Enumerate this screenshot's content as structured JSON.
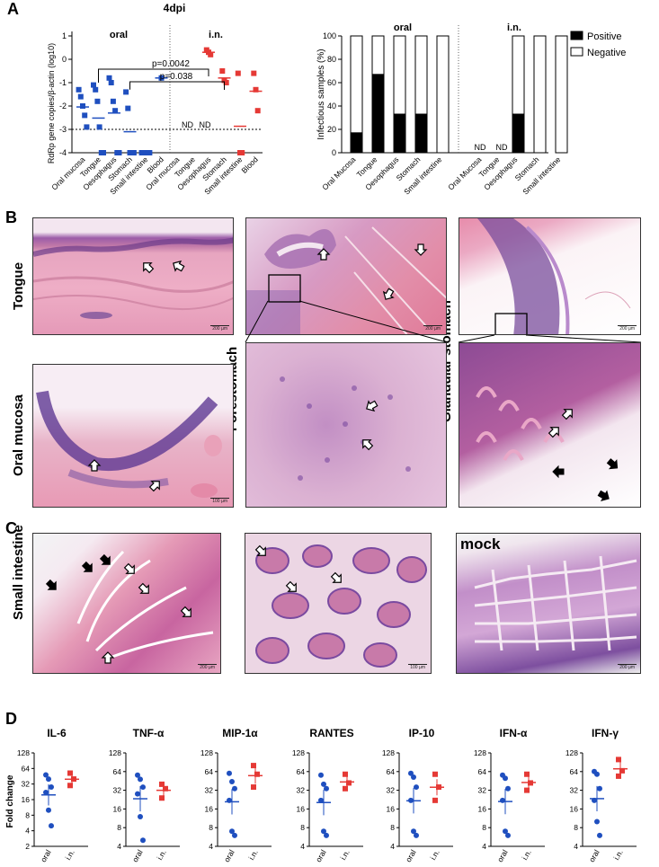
{
  "panelA": {
    "letter": "A",
    "time_label": "4dpi",
    "left": {
      "group_oral": "oral",
      "group_in": "i.n.",
      "ylabel": "RdRp gene copies/β-actin (log10)",
      "yticks": [
        "1",
        "0",
        "-1",
        "-2",
        "-3",
        "-4"
      ],
      "p1": "p=0.0042",
      "p2": "p=0.038",
      "nd": [
        "ND",
        "ND"
      ],
      "categories": [
        "Oral mucosa",
        "Tongue",
        "Oesophagus",
        "Stomach",
        "Small intestine",
        "Blood",
        "Oral mucosa",
        "Tongue",
        "Oesophagus",
        "Stomach",
        "Small intestine",
        "Blood"
      ],
      "colors": {
        "oral": "#1f4fbf",
        "in": "#e53935"
      }
    },
    "right": {
      "group_oral": "oral",
      "group_in": "i.n.",
      "ylabel": "Infectious samples (%)",
      "yticks": [
        "0",
        "20",
        "40",
        "60",
        "80",
        "100"
      ],
      "legend": [
        "Positive",
        "Negative"
      ],
      "nd": [
        "ND",
        "ND"
      ],
      "categories": [
        "Oral Mucosa",
        "Tongue",
        "Oesophagus",
        "Stomach",
        "Small intestine",
        "Oral Mucosa",
        "Tongue",
        "Oesophagus",
        "Stomach",
        "Small intestine"
      ]
    }
  },
  "panelB": {
    "letter": "B",
    "labels": {
      "tongue": "Tongue",
      "oral_mucosa": "Oral mucosa",
      "forestomach": "Forestomach",
      "glandular": "Glandular stomach"
    },
    "scale_200": "200 µm",
    "scale_100": "100 µm"
  },
  "panelC": {
    "letter": "C",
    "label": "Small intestine",
    "mock": "mock",
    "scale_200": "200 µm",
    "scale_100": "100 µm"
  },
  "panelD": {
    "letter": "D",
    "ylabel": "Fold change",
    "xticks": [
      "oral",
      "i.n."
    ],
    "titles": [
      "IL-6",
      "TNF-α",
      "MIP-1α",
      "RANTES",
      "IP-10",
      "IFN-α",
      "IFN-γ"
    ],
    "ticks_first": [
      "2",
      "4",
      "8",
      "16",
      "32",
      "64",
      "128"
    ],
    "ticks_other": [
      "4",
      "8",
      "16",
      "32",
      "64",
      "128"
    ]
  },
  "chart_data": [
    {
      "type": "scatter",
      "title": "4dpi",
      "ylabel": "RdRp gene copies/β-actin (log10)",
      "ylim": [
        -4,
        1
      ],
      "series": [
        {
          "name": "oral",
          "points": [
            {
              "x": "Oral mucosa",
              "y": [
                -1.3,
                -1.6,
                -2.0,
                -2.4,
                -2.9
              ]
            },
            {
              "x": "Tongue",
              "y": [
                -1.1,
                -1.3,
                -1.8,
                -2.9,
                -4,
                -4
              ]
            },
            {
              "x": "Oesophagus",
              "y": [
                -0.8,
                -1.0,
                -1.8,
                -2.2,
                -4,
                -4
              ]
            },
            {
              "x": "Stomach",
              "y": [
                -1.4,
                -2.1,
                -4,
                -4,
                -4
              ]
            },
            {
              "x": "Small intestine",
              "y": [
                -4,
                -4,
                -4,
                -4,
                -4
              ]
            },
            {
              "x": "Blood",
              "y": [
                -0.8
              ]
            }
          ]
        },
        {
          "name": "i.n.",
          "points": [
            {
              "x": "Oesophagus",
              "y": [
                0.4,
                0.3,
                0.2
              ]
            },
            {
              "x": "Stomach",
              "y": [
                -0.5,
                -0.9,
                -1.0
              ]
            },
            {
              "x": "Small intestine",
              "y": [
                -0.6,
                -4,
                -4
              ]
            },
            {
              "x": "Blood",
              "y": [
                -0.6,
                -1.3,
                -2.2
              ]
            }
          ]
        }
      ]
    },
    {
      "type": "bar",
      "stacked": true,
      "ylabel": "Infectious samples (%)",
      "ylim": [
        0,
        100
      ],
      "legend": [
        "Positive",
        "Negative"
      ],
      "groups": [
        {
          "name": "oral",
          "categories": [
            "Oral Mucosa",
            "Tongue",
            "Oesophagus",
            "Stomach",
            "Small intestine"
          ],
          "positive": [
            17,
            67,
            33,
            33,
            0
          ]
        },
        {
          "name": "i.n.",
          "categories": [
            "Oral Mucosa",
            "Tongue",
            "Oesophagus",
            "Stomach",
            "Small intestine"
          ],
          "positive": [
            null,
            null,
            33,
            0,
            0
          ]
        }
      ]
    },
    {
      "type": "scatter",
      "ylabel": "Fold change",
      "yscale": "log2",
      "panels": [
        {
          "title": "IL-6",
          "ylim": [
            2,
            128
          ],
          "oral": [
            48,
            40,
            28,
            22,
            10,
            5
          ],
          "in": [
            52,
            40,
            30
          ]
        },
        {
          "title": "TNF-α",
          "ylim": [
            4,
            128
          ],
          "oral": [
            56,
            48,
            36,
            28,
            12,
            5
          ],
          "in": [
            40,
            34,
            24
          ]
        },
        {
          "title": "MIP-1α",
          "ylim": [
            4,
            128
          ],
          "oral": [
            60,
            44,
            34,
            22,
            7,
            6
          ],
          "in": [
            80,
            58,
            36
          ]
        },
        {
          "title": "RANTES",
          "ylim": [
            4,
            128
          ],
          "oral": [
            56,
            40,
            34,
            22,
            7,
            6
          ],
          "in": [
            58,
            42,
            34
          ]
        },
        {
          "title": "IP-10",
          "ylim": [
            4,
            128
          ],
          "oral": [
            60,
            52,
            36,
            22,
            7,
            6
          ],
          "in": [
            58,
            36,
            22
          ]
        },
        {
          "title": "IFN-α",
          "ylim": [
            4,
            128
          ],
          "oral": [
            56,
            50,
            34,
            22,
            7,
            6
          ],
          "in": [
            58,
            42,
            32
          ]
        },
        {
          "title": "IFN-γ",
          "ylim": [
            4,
            128
          ],
          "oral": [
            64,
            58,
            34,
            22,
            10,
            6
          ],
          "in": [
            100,
            66,
            54
          ]
        }
      ]
    }
  ]
}
